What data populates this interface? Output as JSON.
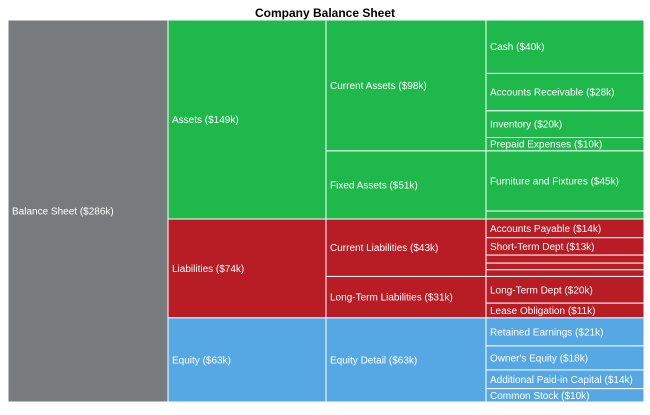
{
  "chart_data": {
    "type": "icicle",
    "title": "Company Balance Sheet",
    "root": {
      "name": "Balance Sheet",
      "value": 286,
      "label": "Balance Sheet ($286k)",
      "color": "#777b7e",
      "children": [
        {
          "name": "Assets",
          "value": 149,
          "label": "Assets ($149k)",
          "color": "#1fb84b",
          "children": [
            {
              "name": "Current Assets",
              "value": 98,
              "label": "Current Assets ($98k)",
              "children": [
                {
                  "name": "Cash",
                  "value": 40,
                  "label": "Cash ($40k)"
                },
                {
                  "name": "Accounts Receivable",
                  "value": 28,
                  "label": "Accounts Receivable ($28k)"
                },
                {
                  "name": "Inventory",
                  "value": 20,
                  "label": "Inventory ($20k)"
                },
                {
                  "name": "Prepaid Expenses",
                  "value": 10,
                  "label": "Prepaid Expenses ($10k)"
                }
              ]
            },
            {
              "name": "Fixed Assets",
              "value": 51,
              "label": "Fixed Assets ($51k)",
              "children": [
                {
                  "name": "Furniture and Fixtures",
                  "value": 45,
                  "label": "Furniture and Fixtures ($45k)"
                },
                {
                  "name": "",
                  "value": 6,
                  "label": ""
                }
              ]
            }
          ]
        },
        {
          "name": "Liabilities",
          "value": 74,
          "label": "Liabilities ($74k)",
          "color": "#b81c24",
          "children": [
            {
              "name": "Current Liabilities",
              "value": 43,
              "label": "Current Liabilities ($43k)",
              "children": [
                {
                  "name": "Accounts Payable",
                  "value": 14,
                  "label": "Accounts Payable ($14k)"
                },
                {
                  "name": "Short-Term Dept",
                  "value": 13,
                  "label": "Short-Term Dept ($13k)"
                },
                {
                  "name": "",
                  "value": 6,
                  "label": ""
                },
                {
                  "name": "",
                  "value": 5,
                  "label": ""
                },
                {
                  "name": "",
                  "value": 5,
                  "label": ""
                }
              ]
            },
            {
              "name": "Long-Term Liabilities",
              "value": 31,
              "label": "Long-Term Liabilities ($31k)",
              "children": [
                {
                  "name": "Long-Term Dept",
                  "value": 20,
                  "label": "Long-Term Dept ($20k)"
                },
                {
                  "name": "Lease Obligation",
                  "value": 11,
                  "label": "Lease Obligation ($11k)"
                }
              ]
            }
          ]
        },
        {
          "name": "Equity",
          "value": 63,
          "label": "Equity ($63k)",
          "color": "#55a8e4",
          "children": [
            {
              "name": "Equity Detail",
              "value": 63,
              "label": "Equity Detail ($63k)",
              "children": [
                {
                  "name": "Retained Earnings",
                  "value": 21,
                  "label": "Retained Earnings ($21k)"
                },
                {
                  "name": "Owner's Equity",
                  "value": 18,
                  "label": "Owner's Equity ($18k)"
                },
                {
                  "name": "Additional Paid-in Capital",
                  "value": 14,
                  "label": "Additional Paid-in Capital ($14k)"
                },
                {
                  "name": "Common Stock",
                  "value": 10,
                  "label": "Common Stock ($10k)"
                }
              ]
            }
          ]
        }
      ]
    }
  }
}
